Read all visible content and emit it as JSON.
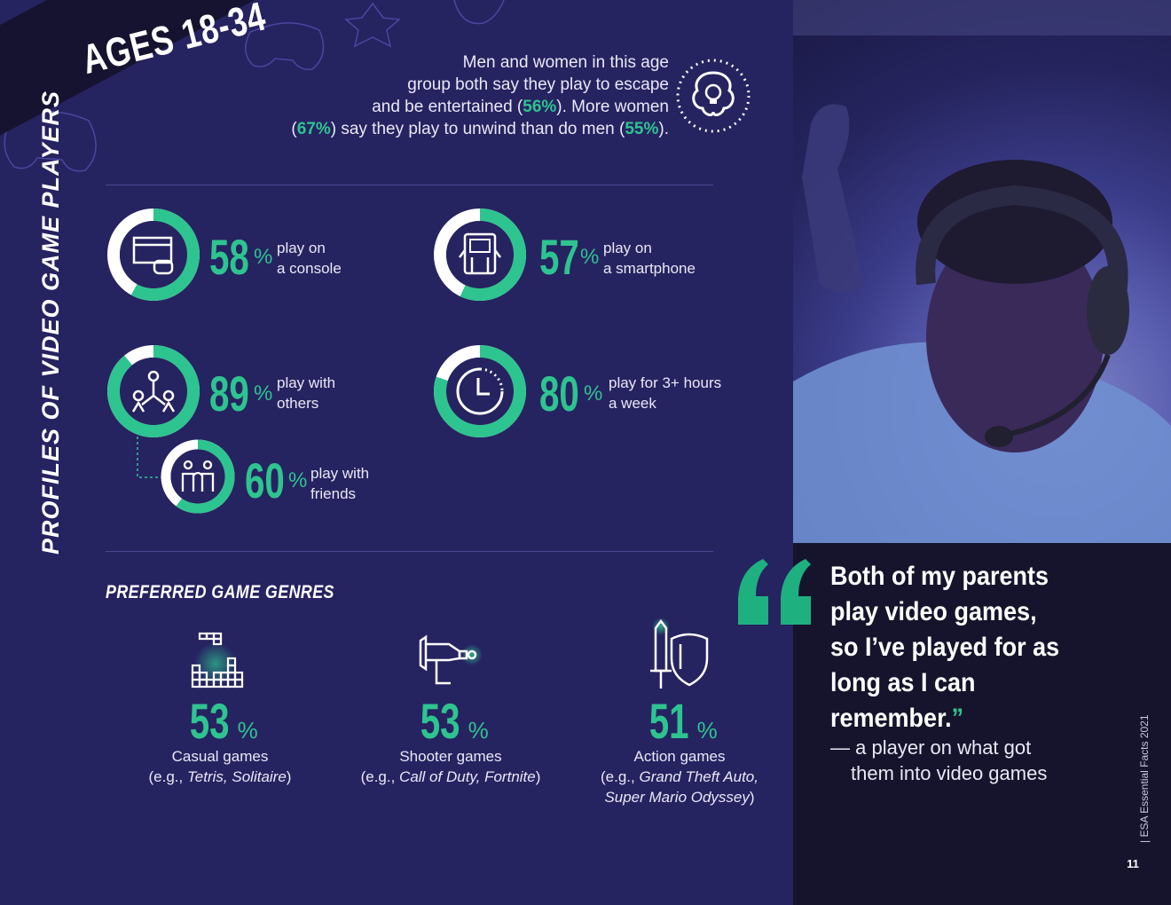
{
  "banner": {
    "title": "AGES 18-34"
  },
  "intro": {
    "line1": "Men and women in this age",
    "line2": "group both say they play to escape",
    "line3_pre": "and be entertained (",
    "line3_val": "56%",
    "line3_post": "). More women",
    "line4_open": "(",
    "line4_val1": "67%",
    "line4_mid": ") say they play to unwind than do men (",
    "line4_val2": "55%",
    "line4_post": ")."
  },
  "vertical_title": "PROFILES OF VIDEO GAME PLAYERS",
  "stats": [
    {
      "value": "58",
      "fraction": 0.58,
      "unit": "%",
      "label1": "play on",
      "label2": "a console",
      "icon": "console-icon"
    },
    {
      "value": "57",
      "fraction": 0.57,
      "unit": "%",
      "label1": "play on",
      "label2": "a smartphone",
      "icon": "smartphone-icon"
    },
    {
      "value": "89",
      "fraction": 0.89,
      "unit": "%",
      "label1": "play with",
      "label2": "others",
      "icon": "group-icon"
    },
    {
      "value": "80",
      "fraction": 0.8,
      "unit": "%",
      "label1": "play for 3+ hours",
      "label2": "a week",
      "icon": "clock-icon"
    },
    {
      "value": "60",
      "fraction": 0.6,
      "unit": "%",
      "label1": "play with",
      "label2": "friends",
      "icon": "friends-icon"
    }
  ],
  "genres": {
    "title": "PREFERRED GAME GENRES",
    "items": [
      {
        "value": "53",
        "unit": "%",
        "name": "Casual games",
        "ex_pre": "(e.g., ",
        "ex_games": "Tetris, Solitaire",
        "ex_post": ")",
        "ex2": "",
        "icon": "tetris-icon"
      },
      {
        "value": "53",
        "unit": "%",
        "name": "Shooter games",
        "ex_pre": "(e.g., ",
        "ex_games": "Call of Duty, Fortnite",
        "ex_post": ")",
        "ex2": "",
        "icon": "blaster-icon"
      },
      {
        "value": "51",
        "unit": "%",
        "name": "Action games",
        "ex_pre": "(e.g., ",
        "ex_games": "Grand Theft Auto,",
        "ex_post": "",
        "ex2": "Super Mario Odyssey",
        "ex2_post": ")",
        "icon": "sword-shield-icon"
      }
    ]
  },
  "quote": {
    "text": "Both of my parents play video games, so I’ve played for as long as I can remember.",
    "close": "”",
    "attr1": "— a player on what got",
    "attr2": "them into video games"
  },
  "footer": {
    "text": "|  ESA Essential Facts 2021",
    "page": "11"
  },
  "colors": {
    "accent": "#2ec48f",
    "background": "#262361",
    "dark": "#15142c"
  }
}
